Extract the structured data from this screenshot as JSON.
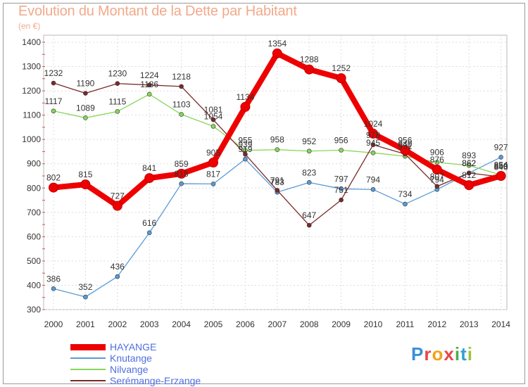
{
  "chart_data": {
    "type": "line",
    "title": "Evolution du Montant de la Dette par Habitant",
    "subtitle": "(en €)",
    "xlabel": "",
    "ylabel": "",
    "x": [
      "2000",
      "2001",
      "2002",
      "2003",
      "2004",
      "2005",
      "2006",
      "2007",
      "2008",
      "2009",
      "2010",
      "2011",
      "2012",
      "2013",
      "2014"
    ],
    "ylim": [
      300,
      1400
    ],
    "yticks": [
      300,
      400,
      500,
      600,
      700,
      800,
      900,
      1000,
      1100,
      1200,
      1300,
      1400
    ],
    "grid": true,
    "legend": "bottom-left",
    "series": [
      {
        "name": "HAYANGE",
        "color": "#ee0000",
        "values": [
          802,
          815,
          727,
          841,
          859,
          905,
          1134,
          1354,
          1288,
          1252,
          1024,
          956,
          876,
          812,
          850
        ],
        "labels": [
          "802",
          "815",
          "727",
          "841",
          "859",
          "905",
          "1134",
          "1354",
          "1288",
          "1252",
          "1024",
          "956",
          "876",
          "812",
          "850"
        ]
      },
      {
        "name": "Knutange",
        "color": "#5a9bd5",
        "values": [
          386,
          352,
          436,
          616,
          818,
          817,
          919,
          783,
          823,
          797,
          794,
          734,
          794,
          862,
          927
        ],
        "labels": [
          "386",
          "352",
          "436",
          "616",
          "818",
          "817",
          "919",
          "783",
          "823",
          "797",
          "794",
          "734",
          "794",
          "862",
          "927"
        ]
      },
      {
        "name": "Nilvange",
        "color": "#88d65a",
        "values": [
          1117,
          1089,
          1115,
          1186,
          1103,
          1054,
          955,
          958,
          952,
          956,
          945,
          931,
          906,
          893,
          854
        ],
        "labels": [
          "1117",
          "1089",
          "1115",
          "1186",
          "1103",
          "1054",
          "955",
          "958",
          "952",
          "956",
          "945",
          "931",
          "906",
          "893",
          "854"
        ]
      },
      {
        "name": "Serémange-Erzange",
        "color": "#7a2a2a",
        "values": [
          1232,
          1190,
          1230,
          1224,
          1218,
          1081,
          939,
          791,
          647,
          751,
          978,
          940,
          807,
          862,
          846
        ],
        "labels": [
          "1232",
          "1190",
          "1230",
          "1224",
          "1218",
          "1081",
          "939",
          "791",
          "647",
          "751",
          "978",
          "940",
          "807",
          "862",
          "846"
        ]
      }
    ]
  },
  "brand": {
    "letters": [
      "P",
      "r",
      "o",
      "x",
      "i",
      "t",
      "i"
    ]
  }
}
